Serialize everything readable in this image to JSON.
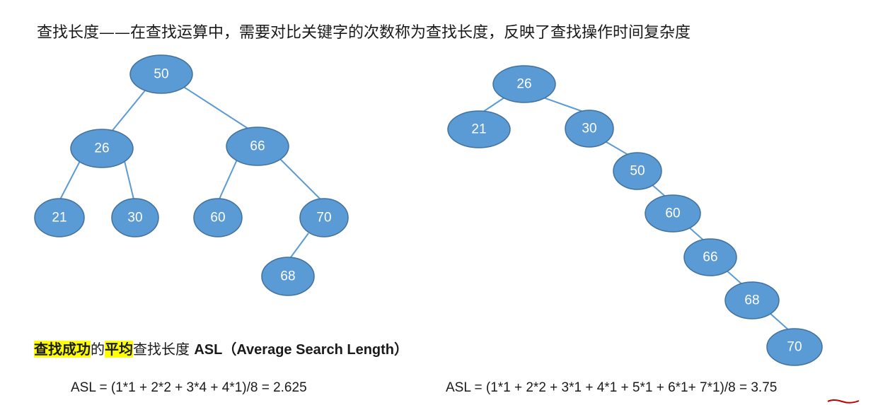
{
  "heading": "查找长度——在查找运算中，需要对比关键字的次数称为查找长度，反映了查找操作时间复杂度",
  "left_tree": {
    "nodes": [
      "50",
      "26",
      "66",
      "21",
      "30",
      "60",
      "70",
      "68"
    ]
  },
  "right_tree": {
    "nodes": [
      "26",
      "21",
      "30",
      "50",
      "60",
      "66",
      "68",
      "70"
    ]
  },
  "asl_title": {
    "hl1": "查找成功",
    "t1": "的",
    "hl2": "平均",
    "t2": "查找长度 ",
    "bold": "ASL（Average Search Length）"
  },
  "formula_left": "ASL = (1*1 + 2*2 + 3*4 + 4*1)/8 = 2.625",
  "formula_right_prefix": "ASL = (1*1 + 2*2 + 3*1 + 4*1 + 5*1 + 6*1+  7*1)/8 = ",
  "formula_right_result": "3.75",
  "colors": {
    "node_fill": "#5b9bd5",
    "node_stroke": "#41719c",
    "highlight": "#ffff00",
    "underline": "#c00000"
  }
}
